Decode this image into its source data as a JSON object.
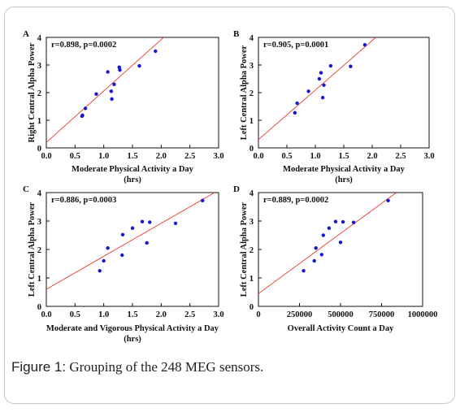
{
  "caption": {
    "label": "Figure 1:",
    "text": " Grouping of the 248 MEG sensors."
  },
  "colors": {
    "points": "#1515d6",
    "fit_line": "#e8392b",
    "axes": "#111111"
  },
  "chart_data": [
    {
      "type": "scatter",
      "panel": "A",
      "annotation": "r=0.898, p=0.0002",
      "xlabel": [
        "Moderate Physical Activity a Day",
        "(hrs)"
      ],
      "ylabel": "Right Central Alpha Power",
      "xlim": [
        0,
        3.0
      ],
      "ylim": [
        0,
        4
      ],
      "xticks": [
        "0.0",
        "0.5",
        "1.0",
        "1.5",
        "2.0",
        "2.5",
        "3.0"
      ],
      "xtick_values": [
        0,
        0.5,
        1.0,
        1.5,
        2.0,
        2.5,
        3.0
      ],
      "yticks": [
        "0",
        "1",
        "2",
        "3",
        "4"
      ],
      "ytick_values": [
        0,
        1,
        2,
        3,
        4
      ],
      "points": [
        {
          "x": 0.62,
          "y": 1.15
        },
        {
          "x": 0.63,
          "y": 1.18
        },
        {
          "x": 0.68,
          "y": 1.43
        },
        {
          "x": 0.87,
          "y": 1.95
        },
        {
          "x": 1.07,
          "y": 2.75
        },
        {
          "x": 1.13,
          "y": 2.05
        },
        {
          "x": 1.14,
          "y": 1.77
        },
        {
          "x": 1.18,
          "y": 2.3
        },
        {
          "x": 1.27,
          "y": 2.92
        },
        {
          "x": 1.28,
          "y": 2.82
        },
        {
          "x": 1.62,
          "y": 2.97
        },
        {
          "x": 1.9,
          "y": 3.5
        }
      ],
      "fit": {
        "x": [
          0,
          2.07
        ],
        "y": [
          0.2,
          4.05
        ]
      }
    },
    {
      "type": "scatter",
      "panel": "B",
      "annotation": "r=0.905, p=0.0001",
      "xlabel": [
        "Moderate Physical Activity a Day",
        "(hrs)"
      ],
      "ylabel": "Left Central Alpha Power",
      "xlim": [
        0,
        3.0
      ],
      "ylim": [
        0,
        4
      ],
      "xticks": [
        "0.0",
        "0.5",
        "1.0",
        "1.5",
        "2.0",
        "2.5",
        "3.0"
      ],
      "xtick_values": [
        0,
        0.5,
        1.0,
        1.5,
        2.0,
        2.5,
        3.0
      ],
      "yticks": [
        "0",
        "1",
        "2",
        "3",
        "4"
      ],
      "ytick_values": [
        0,
        1,
        2,
        3,
        4
      ],
      "points": [
        {
          "x": 0.64,
          "y": 1.27
        },
        {
          "x": 0.68,
          "y": 1.62
        },
        {
          "x": 0.88,
          "y": 2.05
        },
        {
          "x": 1.07,
          "y": 2.5
        },
        {
          "x": 1.1,
          "y": 2.72
        },
        {
          "x": 1.13,
          "y": 1.82
        },
        {
          "x": 1.15,
          "y": 2.27
        },
        {
          "x": 1.27,
          "y": 2.97
        },
        {
          "x": 1.62,
          "y": 2.95
        },
        {
          "x": 1.87,
          "y": 3.73
        }
      ],
      "fit": {
        "x": [
          0,
          2.08
        ],
        "y": [
          0.3,
          4.03
        ]
      }
    },
    {
      "type": "scatter",
      "panel": "C",
      "annotation": "r=0.886, p=0.0003",
      "xlabel": [
        "Moderate and Vigorous Physical Activity a Day",
        "(hrs)"
      ],
      "ylabel": "Left Central Alpha Power",
      "xlim": [
        0,
        3.0
      ],
      "ylim": [
        0,
        4
      ],
      "xticks": [
        "0.0",
        "0.5",
        "1.0",
        "1.5",
        "2.0",
        "2.5",
        "3.0"
      ],
      "xtick_values": [
        0,
        0.5,
        1.0,
        1.5,
        2.0,
        2.5,
        3.0
      ],
      "yticks": [
        "0",
        "1",
        "2",
        "3",
        "4"
      ],
      "ytick_values": [
        0,
        1,
        2,
        3,
        4
      ],
      "points": [
        {
          "x": 0.93,
          "y": 1.25
        },
        {
          "x": 1.0,
          "y": 1.6
        },
        {
          "x": 1.07,
          "y": 2.05
        },
        {
          "x": 1.32,
          "y": 1.8
        },
        {
          "x": 1.33,
          "y": 2.52
        },
        {
          "x": 1.5,
          "y": 2.75
        },
        {
          "x": 1.67,
          "y": 2.98
        },
        {
          "x": 1.75,
          "y": 2.23
        },
        {
          "x": 1.8,
          "y": 2.96
        },
        {
          "x": 2.25,
          "y": 2.92
        },
        {
          "x": 2.72,
          "y": 3.72
        }
      ],
      "fit": {
        "x": [
          0,
          2.93
        ],
        "y": [
          0.6,
          4.0
        ]
      }
    },
    {
      "type": "scatter",
      "panel": "D",
      "annotation": "r=0.889, p=0.0002",
      "xlabel": [
        "Overall Activity Count a Day"
      ],
      "ylabel": "Left Central Alpha Power",
      "xlim": [
        0,
        1000000
      ],
      "ylim": [
        0,
        4
      ],
      "xticks": [
        "0",
        "250000",
        "500000",
        "750000",
        "1000000"
      ],
      "xtick_values": [
        0,
        250000,
        500000,
        750000,
        1000000
      ],
      "yticks": [
        "0",
        "1",
        "2",
        "3",
        "4"
      ],
      "ytick_values": [
        0,
        1,
        2,
        3,
        4
      ],
      "points": [
        {
          "x": 275000,
          "y": 1.25
        },
        {
          "x": 340000,
          "y": 1.6
        },
        {
          "x": 350000,
          "y": 2.05
        },
        {
          "x": 385000,
          "y": 1.82
        },
        {
          "x": 395000,
          "y": 2.5
        },
        {
          "x": 430000,
          "y": 2.75
        },
        {
          "x": 470000,
          "y": 2.98
        },
        {
          "x": 500000,
          "y": 2.25
        },
        {
          "x": 515000,
          "y": 2.97
        },
        {
          "x": 580000,
          "y": 2.95
        },
        {
          "x": 790000,
          "y": 3.72
        }
      ],
      "fit": {
        "x": [
          0,
          840000
        ],
        "y": [
          0.45,
          4.0
        ]
      }
    }
  ]
}
